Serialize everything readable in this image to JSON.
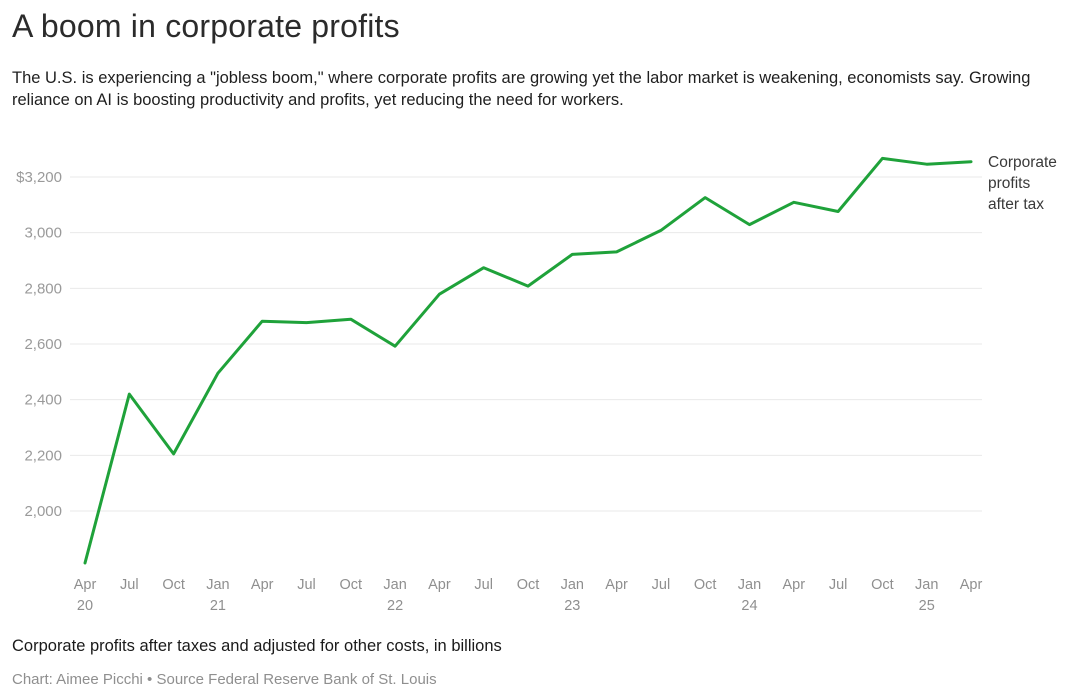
{
  "header": {
    "title": "A boom in corporate profits",
    "subtitle": "The U.S. is experiencing a \"jobless boom,\" where corporate profits are growing yet the labor market is weakening, economists say. Growing reliance on AI is boosting productivity and profits, yet reducing the need for workers."
  },
  "footer": {
    "caption": "Corporate profits after taxes and adjusted for other costs, in billions",
    "credit": "Chart: Aimee Picchi • Source Federal Reserve Bank of St. Louis"
  },
  "chart_data": {
    "type": "line",
    "title": "A boom in corporate profits",
    "xlabel": "",
    "ylabel": "",
    "unit": "billions of U.S. dollars",
    "grid": "horizontal",
    "line_color": "#1fa23a",
    "grid_color": "#e9e9e9",
    "ylim": [
      1790,
      3300
    ],
    "categories": [
      "Apr 2020",
      "Jul 2020",
      "Oct 2020",
      "Jan 2021",
      "Apr 2021",
      "Jul 2021",
      "Oct 2021",
      "Jan 2022",
      "Apr 2022",
      "Jul 2022",
      "Oct 2022",
      "Jan 2023",
      "Apr 2023",
      "Jul 2023",
      "Oct 2023",
      "Jan 2024",
      "Apr 2024",
      "Jul 2024",
      "Oct 2024",
      "Jan 2025",
      "Apr 2025"
    ],
    "x_ticks": [
      {
        "month": "Apr",
        "year": "20"
      },
      {
        "month": "Jul",
        "year": ""
      },
      {
        "month": "Oct",
        "year": ""
      },
      {
        "month": "Jan",
        "year": "21"
      },
      {
        "month": "Apr",
        "year": ""
      },
      {
        "month": "Jul",
        "year": ""
      },
      {
        "month": "Oct",
        "year": ""
      },
      {
        "month": "Jan",
        "year": "22"
      },
      {
        "month": "Apr",
        "year": ""
      },
      {
        "month": "Jul",
        "year": ""
      },
      {
        "month": "Oct",
        "year": ""
      },
      {
        "month": "Jan",
        "year": "23"
      },
      {
        "month": "Apr",
        "year": ""
      },
      {
        "month": "Jul",
        "year": ""
      },
      {
        "month": "Oct",
        "year": ""
      },
      {
        "month": "Jan",
        "year": "24"
      },
      {
        "month": "Apr",
        "year": ""
      },
      {
        "month": "Jul",
        "year": ""
      },
      {
        "month": "Oct",
        "year": ""
      },
      {
        "month": "Jan",
        "year": "25"
      },
      {
        "month": "Apr",
        "year": ""
      }
    ],
    "y_ticks": [
      {
        "value": 3200,
        "label": "$3,200"
      },
      {
        "value": 3000,
        "label": "3,000"
      },
      {
        "value": 2800,
        "label": "2,800"
      },
      {
        "value": 2600,
        "label": "2,600"
      },
      {
        "value": 2400,
        "label": "2,400"
      },
      {
        "value": 2200,
        "label": "2,200"
      },
      {
        "value": 2000,
        "label": "2,000"
      }
    ],
    "series": [
      {
        "name": "Corporate profits after tax",
        "legend_lines": [
          "Corporate",
          "profits",
          "after tax"
        ],
        "legend_position": "right-of-line-end",
        "values": [
          1813,
          2420,
          2205,
          2495,
          2682,
          2677,
          2689,
          2592,
          2779,
          2874,
          2808,
          2922,
          2931,
          3008,
          3126,
          3029,
          3109,
          3076,
          3267,
          3246,
          3255
        ]
      }
    ]
  }
}
